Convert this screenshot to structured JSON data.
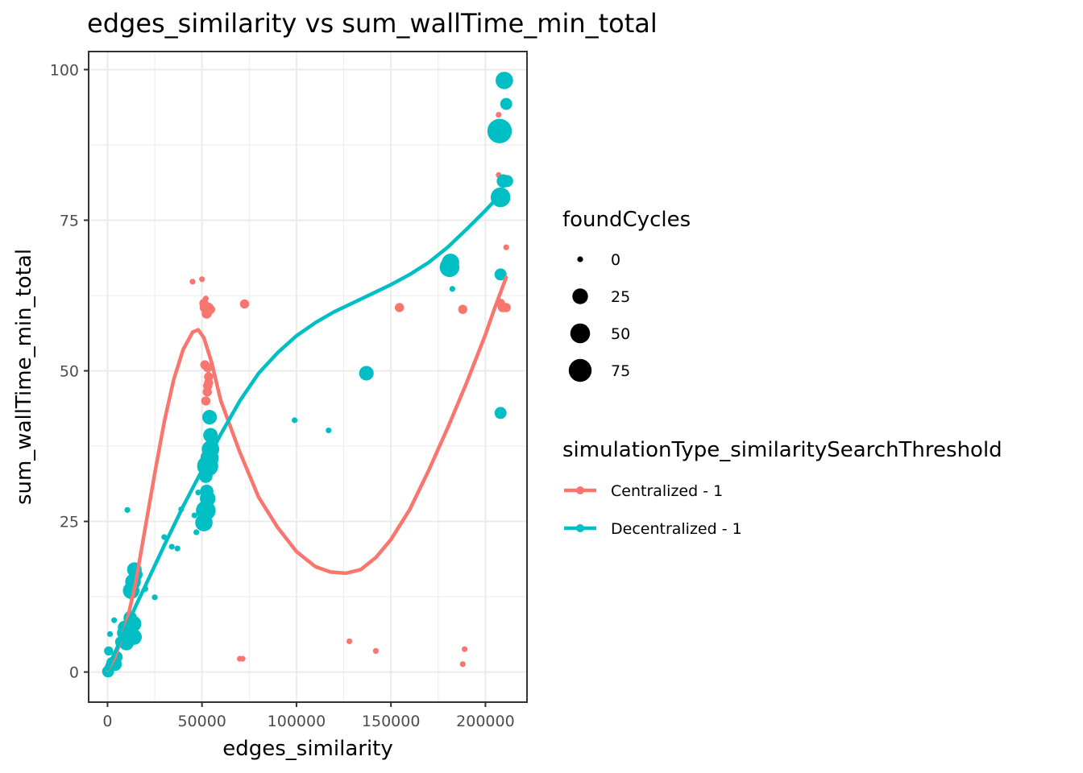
{
  "chart_data": {
    "type": "scatter",
    "title": "edges_similarity  vs  sum_wallTime_min_total",
    "xlabel": "edges_similarity",
    "ylabel": "sum_wallTime_min_total",
    "xlim": [
      -10000,
      222000
    ],
    "ylim": [
      -5,
      103
    ],
    "x_ticks": [
      0,
      50000,
      100000,
      150000,
      200000
    ],
    "x_tick_labels": [
      "0",
      "50000",
      "100000",
      "150000",
      "200000"
    ],
    "y_ticks": [
      0,
      25,
      50,
      75,
      100
    ],
    "y_tick_labels": [
      "0",
      "25",
      "50",
      "75",
      "100"
    ],
    "grid": true,
    "legend_position": "right",
    "size_legend": {
      "title": "foundCycles",
      "entries": [
        {
          "label": "0",
          "value": 0
        },
        {
          "label": "25",
          "value": 25
        },
        {
          "label": "50",
          "value": 50
        },
        {
          "label": "75",
          "value": 75
        }
      ]
    },
    "color_legend": {
      "title": "simulationType_similaritySearchThreshold"
    },
    "series": [
      {
        "name": "Centralized - 1",
        "color": "#F8766D",
        "points": [
          [
            500,
            0.3,
            0
          ],
          [
            1500,
            0.5,
            0
          ],
          [
            2500,
            1.0,
            0
          ],
          [
            45000,
            64.8,
            0
          ],
          [
            50000,
            65.2,
            0
          ],
          [
            51000,
            61.2,
            3
          ],
          [
            52000,
            62.0,
            0
          ],
          [
            51500,
            60.5,
            5
          ],
          [
            52500,
            59.5,
            5
          ],
          [
            53500,
            60.5,
            4
          ],
          [
            54500,
            60.2,
            3
          ],
          [
            51500,
            51.0,
            3
          ],
          [
            53000,
            50.5,
            3
          ],
          [
            53500,
            49.0,
            3
          ],
          [
            53500,
            48.0,
            3
          ],
          [
            53000,
            47.5,
            3
          ],
          [
            52800,
            46.5,
            3
          ],
          [
            52000,
            45.0,
            3
          ],
          [
            70000,
            2.2,
            0
          ],
          [
            71500,
            2.2,
            0
          ],
          [
            72500,
            61.1,
            3
          ],
          [
            128000,
            5.1,
            0
          ],
          [
            142000,
            3.5,
            0
          ],
          [
            154500,
            60.5,
            3
          ],
          [
            188000,
            60.2,
            3
          ],
          [
            188000,
            1.3,
            0
          ],
          [
            189000,
            3.8,
            0
          ],
          [
            207000,
            92.5,
            0
          ],
          [
            207000,
            82.5,
            0
          ],
          [
            208000,
            61.2,
            3
          ],
          [
            209000,
            60.5,
            3
          ],
          [
            210000,
            60.5,
            3
          ],
          [
            211000,
            60.5,
            3
          ],
          [
            211000,
            70.5,
            0
          ],
          [
            13500,
            16.5,
            0
          ],
          [
            14000,
            17.5,
            0
          ]
        ],
        "smooth": [
          [
            0,
            0.3
          ],
          [
            4000,
            2.5
          ],
          [
            10000,
            8.0
          ],
          [
            15000,
            15.0
          ],
          [
            20000,
            24.0
          ],
          [
            25000,
            33.0
          ],
          [
            30000,
            41.5
          ],
          [
            35000,
            48.5
          ],
          [
            40000,
            53.5
          ],
          [
            45000,
            56.4
          ],
          [
            48000,
            56.8
          ],
          [
            51000,
            55.5
          ],
          [
            55000,
            51.5
          ],
          [
            60000,
            45.0
          ],
          [
            70000,
            36.5
          ],
          [
            80000,
            29.0
          ],
          [
            90000,
            24.0
          ],
          [
            100000,
            20.0
          ],
          [
            110000,
            17.5
          ],
          [
            118000,
            16.6
          ],
          [
            126000,
            16.4
          ],
          [
            134000,
            17.0
          ],
          [
            142000,
            19.0
          ],
          [
            150000,
            22.0
          ],
          [
            160000,
            27.0
          ],
          [
            170000,
            33.5
          ],
          [
            180000,
            40.5
          ],
          [
            190000,
            48.0
          ],
          [
            200000,
            56.0
          ],
          [
            205000,
            60.5
          ],
          [
            211000,
            65.5
          ]
        ]
      },
      {
        "name": "Decentralized - 1",
        "color": "#00BFC4",
        "points": [
          [
            300,
            0.1,
            10
          ],
          [
            800,
            0.5,
            5
          ],
          [
            1500,
            1.0,
            5
          ],
          [
            2500,
            1.5,
            10
          ],
          [
            4000,
            1.3,
            15
          ],
          [
            600,
            3.5,
            3
          ],
          [
            1300,
            6.3,
            0
          ],
          [
            3500,
            8.6,
            0
          ],
          [
            5000,
            2.5,
            8
          ],
          [
            7000,
            5.0,
            8
          ],
          [
            8000,
            6.5,
            8
          ],
          [
            9000,
            7.4,
            15
          ],
          [
            10000,
            4.8,
            20
          ],
          [
            11000,
            7.2,
            20
          ],
          [
            12000,
            9.0,
            15
          ],
          [
            13500,
            8.0,
            30
          ],
          [
            14000,
            5.8,
            25
          ],
          [
            12500,
            13.5,
            30
          ],
          [
            13500,
            15.0,
            25
          ],
          [
            14200,
            17.0,
            20
          ],
          [
            15000,
            16.2,
            15
          ],
          [
            10500,
            26.9,
            0
          ],
          [
            20000,
            13.8,
            0
          ],
          [
            25000,
            12.4,
            0
          ],
          [
            30000,
            22.4,
            0
          ],
          [
            34000,
            20.8,
            0
          ],
          [
            37000,
            20.5,
            0
          ],
          [
            39000,
            27.0,
            0
          ],
          [
            47000,
            23.2,
            0
          ],
          [
            48000,
            29.8,
            0
          ],
          [
            46000,
            26.0,
            0
          ],
          [
            51000,
            24.8,
            35
          ],
          [
            52000,
            26.8,
            50
          ],
          [
            53000,
            28.8,
            25
          ],
          [
            52500,
            30.0,
            15
          ],
          [
            52000,
            32.5,
            15
          ],
          [
            53000,
            34.2,
            60
          ],
          [
            54000,
            35.5,
            40
          ],
          [
            54500,
            37.0,
            35
          ],
          [
            54500,
            39.3,
            20
          ],
          [
            54000,
            42.3,
            20
          ],
          [
            99000,
            41.8,
            0
          ],
          [
            117000,
            40.1,
            0
          ],
          [
            137000,
            49.6,
            20
          ],
          [
            181500,
            68.0,
            35
          ],
          [
            182500,
            63.6,
            0
          ],
          [
            181000,
            67.2,
            50
          ],
          [
            207500,
            89.8,
            90
          ],
          [
            208000,
            78.8,
            50
          ],
          [
            208000,
            66.0,
            10
          ],
          [
            208000,
            43.0,
            10
          ],
          [
            209500,
            81.5,
            15
          ],
          [
            211500,
            81.5,
            10
          ],
          [
            210000,
            98.2,
            35
          ],
          [
            211000,
            94.3,
            10
          ]
        ],
        "smooth": [
          [
            0,
            0.5
          ],
          [
            5000,
            4.0
          ],
          [
            10000,
            7.5
          ],
          [
            15000,
            11.0
          ],
          [
            20000,
            14.3
          ],
          [
            30000,
            21.0
          ],
          [
            40000,
            27.5
          ],
          [
            50000,
            33.5
          ],
          [
            60000,
            39.5
          ],
          [
            70000,
            45.0
          ],
          [
            80000,
            49.6
          ],
          [
            90000,
            53.0
          ],
          [
            100000,
            55.8
          ],
          [
            110000,
            58.0
          ],
          [
            120000,
            59.8
          ],
          [
            130000,
            61.3
          ],
          [
            140000,
            62.8
          ],
          [
            150000,
            64.3
          ],
          [
            160000,
            66.0
          ],
          [
            170000,
            68.0
          ],
          [
            180000,
            70.5
          ],
          [
            190000,
            73.5
          ],
          [
            200000,
            76.6
          ],
          [
            210000,
            80.0
          ]
        ]
      }
    ]
  }
}
